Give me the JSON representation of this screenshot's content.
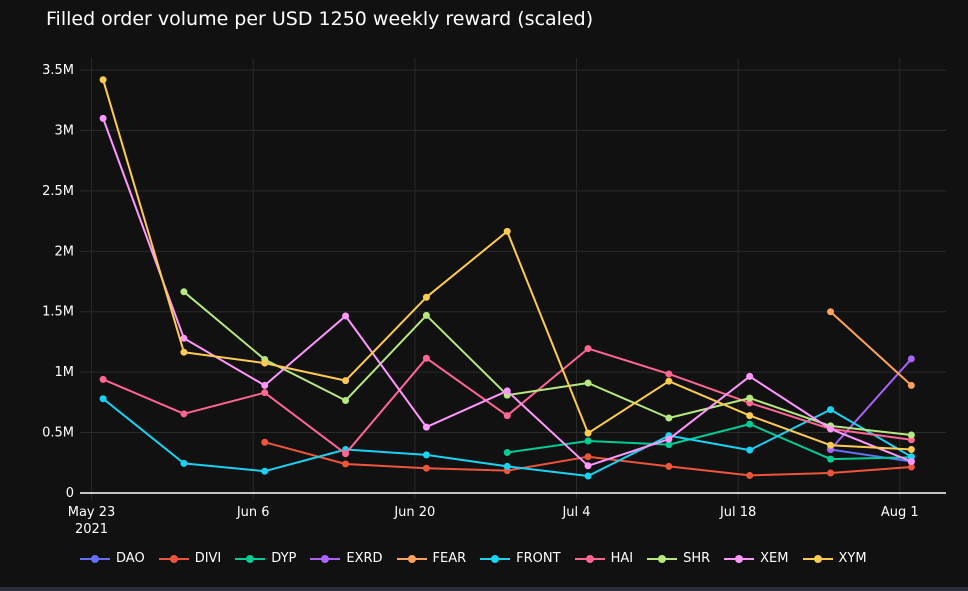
{
  "chart_data": {
    "type": "line",
    "title": "Filled order volume per USD 1250 weekly reward (scaled)",
    "xlabel": "",
    "ylabel": "",
    "x": [
      "2021-05-24",
      "2021-05-31",
      "2021-06-07",
      "2021-06-14",
      "2021-06-21",
      "2021-06-28",
      "2021-07-05",
      "2021-07-12",
      "2021-07-19",
      "2021-07-26",
      "2021-08-02"
    ],
    "xlim": [
      "2021-05-22",
      "2021-08-05"
    ],
    "ylim": [
      -50000,
      3600000
    ],
    "x_ticks": [
      {
        "date": "2021-05-23",
        "label": "May 23",
        "sublabel": "2021"
      },
      {
        "date": "2021-06-06",
        "label": "Jun 6",
        "sublabel": ""
      },
      {
        "date": "2021-06-20",
        "label": "Jun 20",
        "sublabel": ""
      },
      {
        "date": "2021-07-04",
        "label": "Jul 4",
        "sublabel": ""
      },
      {
        "date": "2021-07-18",
        "label": "Jul 18",
        "sublabel": ""
      },
      {
        "date": "2021-08-01",
        "label": "Aug 1",
        "sublabel": ""
      }
    ],
    "y_ticks": [
      {
        "value": 0,
        "label": "0"
      },
      {
        "value": 500000,
        "label": "0.5M"
      },
      {
        "value": 1000000,
        "label": "1M"
      },
      {
        "value": 1500000,
        "label": "1.5M"
      },
      {
        "value": 2000000,
        "label": "2M"
      },
      {
        "value": 2500000,
        "label": "2.5M"
      },
      {
        "value": 3000000,
        "label": "3M"
      },
      {
        "value": 3500000,
        "label": "3.5M"
      }
    ],
    "grid": true,
    "legend_position": "bottom",
    "series": [
      {
        "name": "DAO",
        "color": "#636efa",
        "values": [
          null,
          null,
          null,
          null,
          null,
          null,
          null,
          null,
          null,
          360000,
          260000
        ]
      },
      {
        "name": "DIVI",
        "color": "#ef553b",
        "values": [
          null,
          null,
          420000,
          240000,
          205000,
          185000,
          300000,
          220000,
          145000,
          165000,
          215000
        ]
      },
      {
        "name": "DYP",
        "color": "#00cc96",
        "values": [
          null,
          null,
          null,
          null,
          null,
          335000,
          430000,
          400000,
          570000,
          280000,
          295000
        ]
      },
      {
        "name": "EXRD",
        "color": "#ab63fa",
        "values": [
          null,
          null,
          null,
          null,
          null,
          null,
          null,
          null,
          null,
          360000,
          1110000
        ]
      },
      {
        "name": "FEAR",
        "color": "#ffa15a",
        "values": [
          null,
          null,
          null,
          null,
          null,
          null,
          null,
          null,
          null,
          1500000,
          890000
        ]
      },
      {
        "name": "FRONT",
        "color": "#19d3f3",
        "values": [
          780000,
          245000,
          180000,
          360000,
          315000,
          220000,
          140000,
          475000,
          355000,
          690000,
          300000
        ]
      },
      {
        "name": "HAI",
        "color": "#ff6692",
        "values": [
          940000,
          655000,
          830000,
          325000,
          1115000,
          640000,
          1195000,
          985000,
          745000,
          530000,
          440000
        ]
      },
      {
        "name": "SHR",
        "color": "#b6e880",
        "values": [
          null,
          1665000,
          1105000,
          765000,
          1470000,
          810000,
          910000,
          620000,
          785000,
          555000,
          480000
        ]
      },
      {
        "name": "XEM",
        "color": "#ff97ff",
        "values": [
          3100000,
          1280000,
          890000,
          1465000,
          545000,
          845000,
          225000,
          445000,
          965000,
          530000,
          260000
        ]
      },
      {
        "name": "XYM",
        "color": "#fecb52",
        "values": [
          3420000,
          1165000,
          1075000,
          930000,
          1620000,
          2165000,
          495000,
          925000,
          640000,
          395000,
          360000
        ]
      }
    ]
  }
}
